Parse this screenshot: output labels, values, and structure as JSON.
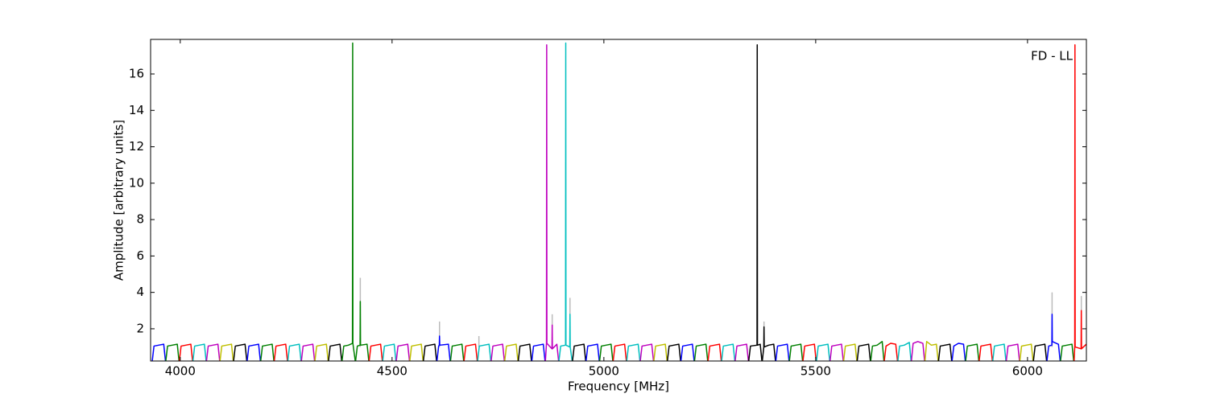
{
  "chart_data": {
    "type": "line",
    "xlabel": "Frequency [MHz]",
    "ylabel": "Amplitude [arbitrary units]",
    "annotation": "FD - LL",
    "xlim": [
      3930,
      6139
    ],
    "ylim": [
      0.23,
      17.9
    ],
    "xticks": [
      4000,
      4500,
      5000,
      5500,
      6000
    ],
    "yticks": [
      2,
      4,
      6,
      8,
      10,
      12,
      14,
      16
    ],
    "series": [
      {
        "color": "#bbbbbb",
        "x": [
          4425,
          4425,
          4426,
          4612,
          4612,
          4613,
          4705,
          4705,
          4706,
          4878,
          4878,
          4879,
          4920,
          4920,
          4921,
          5378,
          5378,
          5379,
          6058,
          6058,
          6059,
          6127,
          6127
        ],
        "values": [
          1,
          4.8,
          null,
          1,
          2.4,
          null,
          1,
          1.6,
          null,
          1,
          2.8,
          null,
          1,
          3.7,
          null,
          1,
          2.4,
          null,
          1,
          4.0,
          null,
          1,
          3.8
        ]
      },
      {
        "color": "#0000ff",
        "x": [
          3934,
          3938,
          3949,
          3961,
          3965
        ],
        "values": [
          0.25,
          1.05,
          1.1,
          1.15,
          0.25
        ]
      },
      {
        "color": "#008000",
        "x": [
          3966,
          3970,
          3981,
          3993,
          3997
        ],
        "values": [
          0.25,
          1.05,
          1.1,
          1.15,
          0.25
        ]
      },
      {
        "color": "#ff0000",
        "x": [
          3998,
          4002,
          4013,
          4025,
          4029
        ],
        "values": [
          0.25,
          1.05,
          1.1,
          1.15,
          0.25
        ]
      },
      {
        "color": "#00bfbf",
        "x": [
          4030,
          4034,
          4045,
          4057,
          4061
        ],
        "values": [
          0.25,
          1.05,
          1.1,
          1.15,
          0.25
        ]
      },
      {
        "color": "#bf00bf",
        "x": [
          4062,
          4066,
          4077,
          4089,
          4093
        ],
        "values": [
          0.25,
          1.05,
          1.1,
          1.15,
          0.25
        ]
      },
      {
        "color": "#bfbf00",
        "x": [
          4094,
          4098,
          4109,
          4121,
          4125
        ],
        "values": [
          0.25,
          1.05,
          1.1,
          1.15,
          0.25
        ]
      },
      {
        "color": "#000000",
        "x": [
          4126,
          4130,
          4141,
          4153,
          4157
        ],
        "values": [
          0.25,
          1.05,
          1.1,
          1.15,
          0.25
        ]
      },
      {
        "color": "#0000ff",
        "x": [
          4158,
          4162,
          4173,
          4185,
          4189
        ],
        "values": [
          0.25,
          1.05,
          1.1,
          1.15,
          0.25
        ]
      },
      {
        "color": "#008000",
        "x": [
          4190,
          4194,
          4205,
          4217,
          4221
        ],
        "values": [
          0.25,
          1.05,
          1.1,
          1.15,
          0.25
        ]
      },
      {
        "color": "#ff0000",
        "x": [
          4222,
          4226,
          4237,
          4249,
          4253
        ],
        "values": [
          0.25,
          1.05,
          1.1,
          1.15,
          0.25
        ]
      },
      {
        "color": "#00bfbf",
        "x": [
          4254,
          4258,
          4269,
          4281,
          4285
        ],
        "values": [
          0.25,
          1.05,
          1.1,
          1.15,
          0.25
        ]
      },
      {
        "color": "#bf00bf",
        "x": [
          4286,
          4290,
          4301,
          4313,
          4317
        ],
        "values": [
          0.25,
          1.05,
          1.1,
          1.15,
          0.25
        ]
      },
      {
        "color": "#bfbf00",
        "x": [
          4318,
          4322,
          4333,
          4345,
          4349
        ],
        "values": [
          0.25,
          1.05,
          1.1,
          1.15,
          0.25
        ]
      },
      {
        "color": "#000000",
        "x": [
          4350,
          4354,
          4365,
          4377,
          4381
        ],
        "values": [
          0.25,
          1.05,
          1.1,
          1.15,
          0.25
        ]
      },
      {
        "color": "#008000",
        "x": [
          4382,
          4386,
          4397,
          4406.5,
          4407,
          4407.5,
          4413
        ],
        "values": [
          0.25,
          1.05,
          1.1,
          1.2,
          17.7,
          1.2,
          0.25
        ]
      },
      {
        "color": "#008000",
        "x": [
          4414,
          4418,
          4424.5,
          4425,
          4425.5,
          4441,
          4445
        ],
        "values": [
          0.25,
          1.05,
          1.1,
          3.5,
          1.1,
          1.15,
          0.25
        ]
      },
      {
        "color": "#ff0000",
        "x": [
          4446,
          4450,
          4461,
          4473,
          4477
        ],
        "values": [
          0.25,
          1.05,
          1.1,
          1.15,
          0.25
        ]
      },
      {
        "color": "#00bfbf",
        "x": [
          4478,
          4482,
          4493,
          4505,
          4509
        ],
        "values": [
          0.25,
          1.05,
          1.1,
          1.15,
          0.25
        ]
      },
      {
        "color": "#bf00bf",
        "x": [
          4510,
          4514,
          4525,
          4537,
          4541
        ],
        "values": [
          0.25,
          1.05,
          1.1,
          1.15,
          0.25
        ]
      },
      {
        "color": "#bfbf00",
        "x": [
          4542,
          4546,
          4557,
          4569,
          4573
        ],
        "values": [
          0.25,
          1.05,
          1.1,
          1.15,
          0.25
        ]
      },
      {
        "color": "#000000",
        "x": [
          4574,
          4578,
          4589,
          4601,
          4605
        ],
        "values": [
          0.25,
          1.05,
          1.1,
          1.15,
          0.25
        ]
      },
      {
        "color": "#0000ff",
        "x": [
          4606,
          4610,
          4611.5,
          4612,
          4612.5,
          4633,
          4637
        ],
        "values": [
          0.25,
          1.05,
          1.1,
          1.6,
          1.1,
          1.15,
          0.25
        ]
      },
      {
        "color": "#008000",
        "x": [
          4638,
          4642,
          4653,
          4665,
          4669
        ],
        "values": [
          0.25,
          1.05,
          1.1,
          1.15,
          0.25
        ]
      },
      {
        "color": "#ff0000",
        "x": [
          4670,
          4674,
          4685,
          4697,
          4701
        ],
        "values": [
          0.25,
          1.05,
          1.1,
          1.15,
          0.25
        ]
      },
      {
        "color": "#00bfbf",
        "x": [
          4702,
          4706,
          4717,
          4729,
          4733
        ],
        "values": [
          0.25,
          1.05,
          1.1,
          1.15,
          0.25
        ]
      },
      {
        "color": "#bf00bf",
        "x": [
          4734,
          4738,
          4749,
          4761,
          4765
        ],
        "values": [
          0.25,
          1.05,
          1.1,
          1.15,
          0.25
        ]
      },
      {
        "color": "#bfbf00",
        "x": [
          4766,
          4770,
          4781,
          4793,
          4797
        ],
        "values": [
          0.25,
          1.05,
          1.1,
          1.15,
          0.25
        ]
      },
      {
        "color": "#000000",
        "x": [
          4798,
          4802,
          4813,
          4825,
          4829
        ],
        "values": [
          0.25,
          1.05,
          1.1,
          1.15,
          0.25
        ]
      },
      {
        "color": "#0000ff",
        "x": [
          4830,
          4834,
          4845,
          4857,
          4861
        ],
        "values": [
          0.25,
          1.05,
          1.1,
          1.15,
          0.25
        ]
      },
      {
        "color": "#bf00bf",
        "x": [
          4862,
          4864.5,
          4865,
          4865.5,
          4877.5,
          4878,
          4878.5,
          4889,
          4893
        ],
        "values": [
          0.25,
          1.2,
          17.6,
          1.2,
          0.9,
          2.2,
          0.9,
          1.15,
          0.25
        ]
      },
      {
        "color": "#00bfbf",
        "x": [
          4894,
          4898,
          4909.5,
          4910,
          4910.5,
          4919.5,
          4920,
          4920.5,
          4925
        ],
        "values": [
          0.25,
          1.05,
          1.1,
          17.7,
          1.1,
          1.0,
          2.8,
          1.0,
          0.25
        ]
      },
      {
        "color": "#000000",
        "x": [
          4926,
          4930,
          4941,
          4953,
          4957
        ],
        "values": [
          0.25,
          1.05,
          1.1,
          1.15,
          0.25
        ]
      },
      {
        "color": "#0000ff",
        "x": [
          4958,
          4962,
          4973,
          4985,
          4989
        ],
        "values": [
          0.25,
          1.05,
          1.1,
          1.15,
          0.25
        ]
      },
      {
        "color": "#008000",
        "x": [
          4990,
          4994,
          5005,
          5017,
          5021
        ],
        "values": [
          0.25,
          1.05,
          1.1,
          1.15,
          0.25
        ]
      },
      {
        "color": "#ff0000",
        "x": [
          5022,
          5026,
          5037,
          5049,
          5053
        ],
        "values": [
          0.25,
          1.05,
          1.1,
          1.15,
          0.25
        ]
      },
      {
        "color": "#00bfbf",
        "x": [
          5054,
          5058,
          5069,
          5081,
          5085
        ],
        "values": [
          0.25,
          1.05,
          1.1,
          1.15,
          0.25
        ]
      },
      {
        "color": "#bf00bf",
        "x": [
          5086,
          5090,
          5101,
          5113,
          5117
        ],
        "values": [
          0.25,
          1.05,
          1.1,
          1.15,
          0.25
        ]
      },
      {
        "color": "#bfbf00",
        "x": [
          5118,
          5122,
          5133,
          5145,
          5149
        ],
        "values": [
          0.25,
          1.05,
          1.1,
          1.15,
          0.25
        ]
      },
      {
        "color": "#000000",
        "x": [
          5150,
          5154,
          5165,
          5177,
          5181
        ],
        "values": [
          0.25,
          1.05,
          1.1,
          1.15,
          0.25
        ]
      },
      {
        "color": "#0000ff",
        "x": [
          5182,
          5186,
          5197,
          5209,
          5213
        ],
        "values": [
          0.25,
          1.05,
          1.1,
          1.15,
          0.25
        ]
      },
      {
        "color": "#008000",
        "x": [
          5214,
          5218,
          5229,
          5241,
          5245
        ],
        "values": [
          0.25,
          1.05,
          1.1,
          1.15,
          0.25
        ]
      },
      {
        "color": "#ff0000",
        "x": [
          5246,
          5250,
          5261,
          5273,
          5277
        ],
        "values": [
          0.25,
          1.05,
          1.1,
          1.15,
          0.25
        ]
      },
      {
        "color": "#00bfbf",
        "x": [
          5278,
          5282,
          5293,
          5305,
          5309
        ],
        "values": [
          0.25,
          1.05,
          1.1,
          1.15,
          0.25
        ]
      },
      {
        "color": "#bf00bf",
        "x": [
          5310,
          5314,
          5325,
          5337,
          5341
        ],
        "values": [
          0.25,
          1.05,
          1.1,
          1.15,
          0.25
        ]
      },
      {
        "color": "#000000",
        "x": [
          5342,
          5346,
          5361.5,
          5362,
          5362.5,
          5369,
          5373
        ],
        "values": [
          0.25,
          1.05,
          1.1,
          17.6,
          1.1,
          1.15,
          0.25
        ]
      },
      {
        "color": "#000000",
        "x": [
          5374,
          5377.5,
          5378,
          5378.5,
          5389,
          5401,
          5405
        ],
        "values": [
          0.25,
          1.0,
          2.1,
          1.0,
          1.1,
          1.15,
          0.25
        ]
      },
      {
        "color": "#0000ff",
        "x": [
          5406,
          5410,
          5421,
          5433,
          5437
        ],
        "values": [
          0.25,
          1.05,
          1.1,
          1.15,
          0.25
        ]
      },
      {
        "color": "#008000",
        "x": [
          5438,
          5442,
          5453,
          5465,
          5469
        ],
        "values": [
          0.25,
          1.05,
          1.1,
          1.15,
          0.25
        ]
      },
      {
        "color": "#ff0000",
        "x": [
          5470,
          5474,
          5485,
          5497,
          5501
        ],
        "values": [
          0.25,
          1.05,
          1.1,
          1.15,
          0.25
        ]
      },
      {
        "color": "#00bfbf",
        "x": [
          5502,
          5506,
          5517,
          5529,
          5533
        ],
        "values": [
          0.25,
          1.05,
          1.1,
          1.15,
          0.25
        ]
      },
      {
        "color": "#bf00bf",
        "x": [
          5534,
          5538,
          5549,
          5561,
          5565
        ],
        "values": [
          0.25,
          1.05,
          1.1,
          1.15,
          0.25
        ]
      },
      {
        "color": "#bfbf00",
        "x": [
          5566,
          5570,
          5581,
          5593,
          5597
        ],
        "values": [
          0.25,
          1.05,
          1.1,
          1.15,
          0.25
        ]
      },
      {
        "color": "#000000",
        "x": [
          5598,
          5602,
          5613,
          5625,
          5629
        ],
        "values": [
          0.25,
          1.05,
          1.1,
          1.15,
          0.25
        ]
      },
      {
        "color": "#008000",
        "x": [
          5630,
          5634,
          5645,
          5657,
          5661
        ],
        "values": [
          0.25,
          1.05,
          1.1,
          1.3,
          0.25
        ]
      },
      {
        "color": "#ff0000",
        "x": [
          5662,
          5666,
          5677,
          5689,
          5693
        ],
        "values": [
          0.25,
          1.05,
          1.2,
          1.15,
          0.25
        ]
      },
      {
        "color": "#00bfbf",
        "x": [
          5694,
          5698,
          5709,
          5721,
          5725
        ],
        "values": [
          0.25,
          1.05,
          1.1,
          1.25,
          0.25
        ]
      },
      {
        "color": "#bf00bf",
        "x": [
          5726,
          5730,
          5741,
          5753,
          5757
        ],
        "values": [
          0.25,
          1.2,
          1.3,
          1.2,
          0.25
        ]
      },
      {
        "color": "#bfbf00",
        "x": [
          5758,
          5762,
          5773,
          5785,
          5789
        ],
        "values": [
          0.25,
          1.3,
          1.1,
          1.15,
          0.25
        ]
      },
      {
        "color": "#000000",
        "x": [
          5790,
          5794,
          5805,
          5817,
          5821
        ],
        "values": [
          0.25,
          1.05,
          1.1,
          1.15,
          0.25
        ]
      },
      {
        "color": "#0000ff",
        "x": [
          5822,
          5826,
          5837,
          5849,
          5853
        ],
        "values": [
          0.25,
          1.05,
          1.2,
          1.15,
          0.25
        ]
      },
      {
        "color": "#008000",
        "x": [
          5854,
          5858,
          5869,
          5881,
          5885
        ],
        "values": [
          0.25,
          1.05,
          1.1,
          1.15,
          0.25
        ]
      },
      {
        "color": "#ff0000",
        "x": [
          5886,
          5890,
          5901,
          5913,
          5917
        ],
        "values": [
          0.25,
          1.05,
          1.1,
          1.15,
          0.25
        ]
      },
      {
        "color": "#00bfbf",
        "x": [
          5918,
          5922,
          5933,
          5945,
          5949
        ],
        "values": [
          0.25,
          1.05,
          1.1,
          1.15,
          0.25
        ]
      },
      {
        "color": "#bf00bf",
        "x": [
          5950,
          5954,
          5965,
          5977,
          5981
        ],
        "values": [
          0.25,
          1.05,
          1.1,
          1.15,
          0.25
        ]
      },
      {
        "color": "#bfbf00",
        "x": [
          5982,
          5986,
          5997,
          6009,
          6013
        ],
        "values": [
          0.25,
          1.05,
          1.1,
          1.15,
          0.25
        ]
      },
      {
        "color": "#000000",
        "x": [
          6014,
          6018,
          6029,
          6041,
          6045
        ],
        "values": [
          0.25,
          1.05,
          1.1,
          1.15,
          0.25
        ]
      },
      {
        "color": "#0000ff",
        "x": [
          6046,
          6050,
          6057.5,
          6058,
          6058.5,
          6073,
          6077
        ],
        "values": [
          0.25,
          1.05,
          1.1,
          2.8,
          1.3,
          1.15,
          0.25
        ]
      },
      {
        "color": "#008000",
        "x": [
          6078,
          6082,
          6093,
          6105,
          6109
        ],
        "values": [
          0.25,
          1.05,
          1.1,
          1.15,
          0.25
        ]
      },
      {
        "color": "#ff0000",
        "x": [
          6110,
          6111.5,
          6112,
          6112.5,
          6126.5,
          6127,
          6127.5,
          6141
        ],
        "values": [
          0.25,
          1.0,
          17.6,
          1.0,
          0.9,
          3.0,
          0.9,
          1.2
        ]
      }
    ]
  }
}
